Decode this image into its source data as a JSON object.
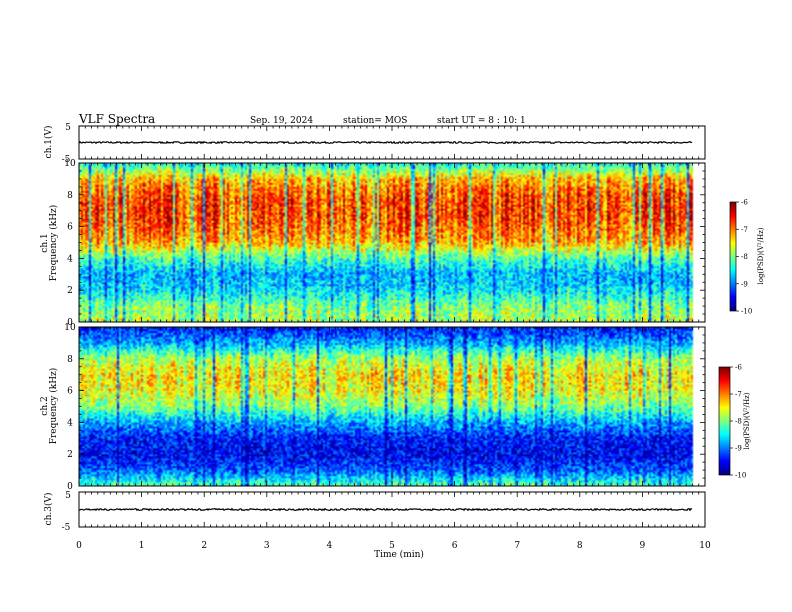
{
  "header": {
    "title": "VLF Spectra",
    "date": "Sep. 19, 2024",
    "station": "station= MOS",
    "start": "start UT =  8 : 10: 1"
  },
  "chart_data": [
    {
      "type": "line",
      "ylabel": "ch.1(V)",
      "ylim": [
        -5,
        5
      ],
      "yticks": [
        "5",
        "-5"
      ],
      "trace_level": 0
    },
    {
      "type": "heatmap",
      "ylabel_top": "ch.1",
      "ylabel": "Frequency (kHz)",
      "ylim": [
        0,
        10
      ],
      "yticks": [
        "0",
        "2",
        "4",
        "6",
        "8",
        "10"
      ],
      "intensity_profile": [
        0.55,
        0.5,
        0.35,
        0.3,
        0.45,
        0.7,
        0.78,
        0.82,
        0.8,
        0.7,
        0.4
      ],
      "colorbar": {
        "label": "log(PSD)(V²/Hz)",
        "range": [
          -10,
          -6
        ],
        "ticks": [
          "-6",
          "-7",
          "-8",
          "-9",
          "-10"
        ]
      }
    },
    {
      "type": "heatmap",
      "ylabel_top": "ch.2",
      "ylabel": "Frequency (kHz)",
      "ylim": [
        0,
        10
      ],
      "yticks": [
        "0",
        "2",
        "4",
        "6",
        "8",
        "10"
      ],
      "intensity_profile": [
        0.45,
        0.2,
        0.12,
        0.15,
        0.3,
        0.5,
        0.62,
        0.65,
        0.55,
        0.3,
        0.15
      ],
      "colorbar": {
        "label": "log(PSD)(V²/Hz)",
        "range": [
          -10,
          -6
        ],
        "ticks": [
          "-6",
          "-7",
          "-8",
          "-9",
          "-10"
        ]
      }
    },
    {
      "type": "line",
      "ylabel": "ch.3(V)",
      "ylim": [
        -5,
        5
      ],
      "yticks": [
        "5",
        "-5"
      ],
      "trace_level": 0
    }
  ],
  "xaxis": {
    "label": "Time (min)",
    "range": [
      0,
      10
    ],
    "ticks": [
      "0",
      "1",
      "2",
      "3",
      "4",
      "5",
      "6",
      "7",
      "8",
      "9",
      "10"
    ],
    "data_end": 9.8
  }
}
